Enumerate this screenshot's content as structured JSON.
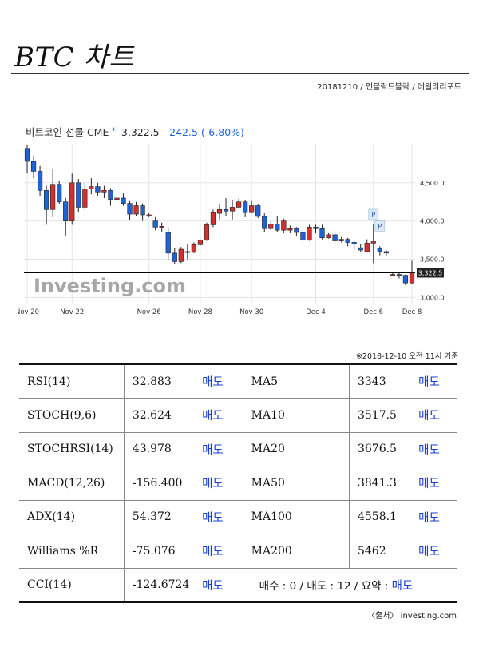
{
  "header": {
    "title": "BTC 차트",
    "subtitle": "20181210 / 언블락드블락 / 데일리리포트"
  },
  "chart_data": {
    "type": "candlestick",
    "title": "비트코인 선물 CME",
    "last_price": "3,322.5",
    "change": "-242.5",
    "change_pct": "(-6.80%)",
    "last_price_tag": "3,322.5",
    "watermark": "Investing.com",
    "x_ticks": [
      "Nov 20",
      "Nov 22",
      "Nov 26",
      "Nov 28",
      "Nov 30",
      "Dec 4",
      "Dec 6",
      "Dec 8"
    ],
    "y_ticks": [
      "3,000.0",
      "3,500.0",
      "4,000.0",
      "4,500.0"
    ],
    "ylim": [
      2920,
      5010
    ],
    "grid": true,
    "colors": {
      "up": "#d32f2f",
      "down": "#1e63d6",
      "line": "#000000",
      "grid": "#e6e6e6"
    },
    "markers": [
      "P",
      "P"
    ],
    "candles": [
      [
        4950,
        4990,
        4620,
        4780
      ],
      [
        4780,
        4850,
        4560,
        4650
      ],
      [
        4650,
        4720,
        4320,
        4400
      ],
      [
        4400,
        4460,
        3950,
        4150
      ],
      [
        4150,
        4680,
        4050,
        4480
      ],
      [
        4480,
        4520,
        4220,
        4250
      ],
      [
        4250,
        4300,
        3810,
        4000
      ],
      [
        4000,
        4620,
        3950,
        4500
      ],
      [
        4500,
        4550,
        4120,
        4180
      ],
      [
        4180,
        4500,
        4150,
        4420
      ],
      [
        4420,
        4560,
        4350,
        4450
      ],
      [
        4450,
        4500,
        4330,
        4380
      ],
      [
        4380,
        4460,
        4300,
        4400
      ],
      [
        4400,
        4430,
        4200,
        4280
      ],
      [
        4280,
        4340,
        4200,
        4300
      ],
      [
        4300,
        4360,
        4200,
        4230
      ],
      [
        4230,
        4260,
        4010,
        4090
      ],
      [
        4090,
        4250,
        4060,
        4200
      ],
      [
        4200,
        4230,
        4000,
        4080
      ],
      [
        4080,
        4100,
        4050,
        4080
      ],
      [
        4000,
        4050,
        3880,
        3920
      ],
      [
        3920,
        3980,
        3850,
        3930
      ],
      [
        3850,
        3900,
        3490,
        3580
      ],
      [
        3580,
        3650,
        3440,
        3470
      ],
      [
        3470,
        3660,
        3450,
        3630
      ],
      [
        3600,
        3700,
        3500,
        3590
      ],
      [
        3590,
        3720,
        3580,
        3690
      ],
      [
        3690,
        3760,
        3680,
        3750
      ],
      [
        3750,
        3980,
        3740,
        3950
      ],
      [
        3950,
        4150,
        3920,
        4110
      ],
      [
        4100,
        4220,
        4020,
        4150
      ],
      [
        4150,
        4300,
        4060,
        4130
      ],
      [
        4130,
        4280,
        4020,
        4180
      ],
      [
        4180,
        4290,
        4160,
        4250
      ],
      [
        4250,
        4270,
        4050,
        4110
      ],
      [
        4110,
        4260,
        4100,
        4200
      ],
      [
        4200,
        4220,
        4040,
        4060
      ],
      [
        4060,
        4100,
        3860,
        3900
      ],
      [
        3900,
        4000,
        3880,
        3960
      ],
      [
        3960,
        4060,
        3850,
        3880
      ],
      [
        3880,
        4030,
        3840,
        4000
      ],
      [
        3880,
        3940,
        3840,
        3900
      ],
      [
        3900,
        3920,
        3800,
        3850
      ],
      [
        3850,
        3880,
        3720,
        3750
      ],
      [
        3750,
        3950,
        3740,
        3920
      ],
      [
        3920,
        3950,
        3840,
        3900
      ],
      [
        3900,
        3950,
        3760,
        3780
      ],
      [
        3780,
        3840,
        3770,
        3820
      ],
      [
        3820,
        3860,
        3700,
        3740
      ],
      [
        3740,
        3790,
        3720,
        3760
      ],
      [
        3760,
        3780,
        3670,
        3720
      ],
      [
        3720,
        3740,
        3620,
        3700
      ],
      [
        3650,
        3700,
        3600,
        3620
      ],
      [
        3600,
        3760,
        3590,
        3710
      ],
      [
        3710,
        3960,
        3450,
        3730
      ],
      [
        3640,
        3670,
        3550,
        3600
      ],
      [
        3600,
        3620,
        3540,
        3580
      ],
      [
        3300,
        3320,
        3280,
        3300
      ],
      [
        3300,
        3330,
        3250,
        3290
      ],
      [
        3290,
        3300,
        3160,
        3190
      ],
      [
        3190,
        3480,
        3180,
        3320
      ]
    ]
  },
  "timestamp_note": "※2018-12-10 오전 11시 기준",
  "indicators": [
    {
      "name": "RSI(14)",
      "value": "32.883",
      "action": "매도",
      "ma_name": "MA5",
      "ma_value": "3343",
      "ma_action": "매도"
    },
    {
      "name": "STOCH(9,6)",
      "value": "32.624",
      "action": "매도",
      "ma_name": "MA10",
      "ma_value": "3517.5",
      "ma_action": "매도"
    },
    {
      "name": "STOCHRSI(14)",
      "value": "43.978",
      "action": "매도",
      "ma_name": "MA20",
      "ma_value": "3676.5",
      "ma_action": "매도"
    },
    {
      "name": "MACD(12,26)",
      "value": "-156.400",
      "action": "매도",
      "ma_name": "MA50",
      "ma_value": "3841.3",
      "ma_action": "매도"
    },
    {
      "name": "ADX(14)",
      "value": "54.372",
      "action": "매도",
      "ma_name": "MA100",
      "ma_value": "4558.1",
      "ma_action": "매도"
    },
    {
      "name": "Williams %R",
      "value": "-75.076",
      "action": "매도",
      "ma_name": "MA200",
      "ma_value": "5462",
      "ma_action": "매도"
    }
  ],
  "last_row": {
    "name": "CCI(14)",
    "value": "-124.6724",
    "action": "매도",
    "summary_text": "매수 : 0 / 매도 : 12 / 요약 : ",
    "summary_value": "매도"
  },
  "source": "〈출처〉 investing.com"
}
